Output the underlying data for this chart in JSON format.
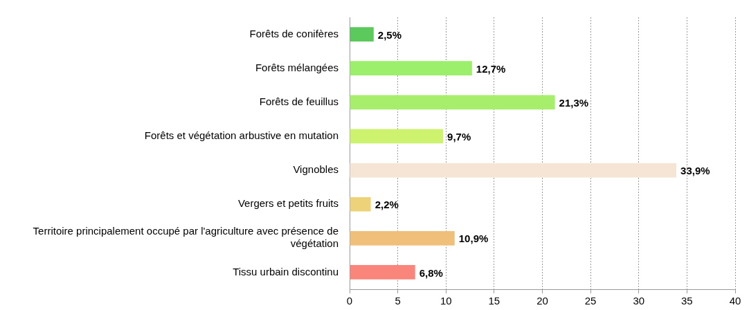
{
  "chart_data": {
    "type": "bar",
    "orientation": "horizontal",
    "categories": [
      "Forêts de conifères",
      "Forêts mélangées",
      "Forêts de feuillus",
      "Forêts et végétation arbustive en mutation",
      "Vignobles",
      "Vergers et petits fruits",
      "Territoire principalement occupé par l'agriculture avec présence de végétation",
      "Tissu urbain discontinu"
    ],
    "values": [
      2.5,
      12.7,
      21.3,
      9.7,
      33.9,
      2.2,
      10.9,
      6.8
    ],
    "colors": [
      "#5bc95b",
      "#9cef6a",
      "#a6ee6c",
      "#cdf26e",
      "#f6e4d4",
      "#eed27a",
      "#f0c07a",
      "#fa857b"
    ],
    "value_labels": [
      "2,5%",
      "12,7%",
      "21,3%",
      "9,7%",
      "33,9%",
      "2,2%",
      "10,9%",
      "6,8%"
    ],
    "xlim": [
      0,
      40
    ],
    "xticks": [
      0,
      5,
      10,
      15,
      20,
      25,
      30,
      35,
      40
    ],
    "grid": "x",
    "legend": false
  }
}
